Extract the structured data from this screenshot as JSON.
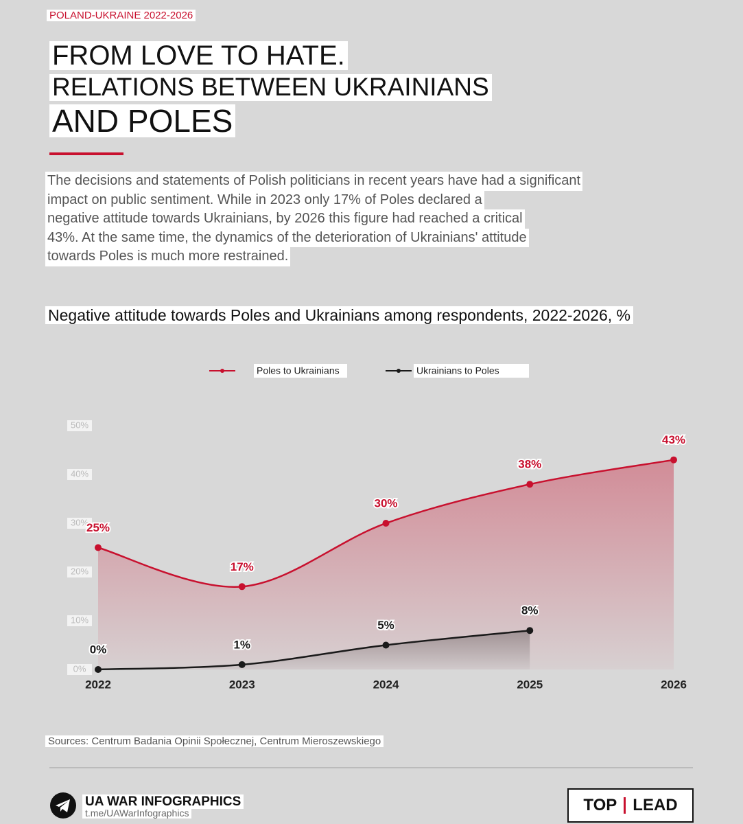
{
  "header": {
    "tag": "POLAND-UKRAINE 2022-2026",
    "title_lines": [
      "FROM LOVE TO HATE.",
      "RELATIONS BETWEEN UKRAINIANS",
      "AND POLES"
    ],
    "description_lines": [
      "The decisions and statements of Polish politicians in recent years have had a significant",
      "impact on public sentiment. While in 2023 only 17% of Poles declared a",
      "negative attitude towards Ukrainians, by 2026 this figure had reached a critical",
      "43%. At the same time, the dynamics of the deterioration of Ukrainians' attitude",
      "towards Poles is much more restrained."
    ]
  },
  "chart_data": {
    "type": "line",
    "area": true,
    "smooth": true,
    "title": "Negative attitude towards Poles and Ukrainians among respondents, 2022-2026, %",
    "categories": [
      "2022",
      "2023",
      "2024",
      "2025",
      "2026"
    ],
    "series": [
      {
        "name": "Poles to Ukrainians",
        "color": "#c8102e",
        "values": [
          25,
          17,
          30,
          38,
          43
        ],
        "value_labels": [
          "25%",
          "17%",
          "30%",
          "38%",
          "43%"
        ]
      },
      {
        "name": "Ukrainians to Poles",
        "color": "#1a1a1a",
        "values": [
          0,
          1,
          5,
          8,
          null
        ],
        "value_labels": [
          "0%",
          "1%",
          "5%",
          "8%",
          null
        ]
      }
    ],
    "ylim": [
      0,
      50
    ],
    "yticks": [
      {
        "value": 0,
        "label": "0%"
      },
      {
        "value": 10,
        "label": "10%"
      },
      {
        "value": 20,
        "label": "20%"
      },
      {
        "value": 30,
        "label": "30%"
      },
      {
        "value": 40,
        "label": "40%"
      },
      {
        "value": 50,
        "label": "50%"
      }
    ],
    "grid": false,
    "legend": "top"
  },
  "sources": "Sources: Centrum Badania Opinii Społecznej, Centrum Mieroszewskiego",
  "footer": {
    "brand": "UA WAR INFOGRAPHICS",
    "link": "t.me/UAWarInfographics",
    "partner": [
      "TOP",
      "LEAD"
    ]
  }
}
